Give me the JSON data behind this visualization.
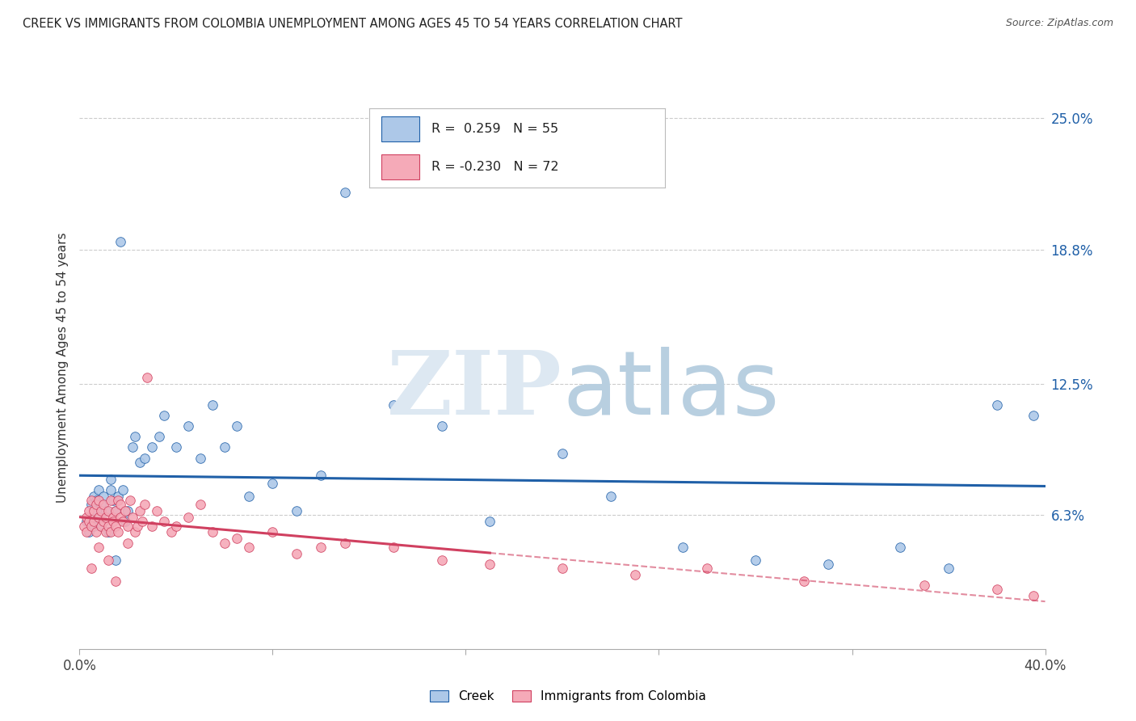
{
  "title": "CREEK VS IMMIGRANTS FROM COLOMBIA UNEMPLOYMENT AMONG AGES 45 TO 54 YEARS CORRELATION CHART",
  "source": "Source: ZipAtlas.com",
  "ylabel": "Unemployment Among Ages 45 to 54 years",
  "xlim": [
    0.0,
    0.4
  ],
  "ylim": [
    0.0,
    0.265
  ],
  "xticks": [
    0.0,
    0.08,
    0.16,
    0.24,
    0.32,
    0.4
  ],
  "xticklabels": [
    "0.0%",
    "",
    "",
    "",
    "",
    "40.0%"
  ],
  "ytick_labels_right": [
    "25.0%",
    "18.8%",
    "12.5%",
    "6.3%"
  ],
  "ytick_vals_right": [
    0.25,
    0.188,
    0.125,
    0.063
  ],
  "creek_R": 0.259,
  "creek_N": 55,
  "colombia_R": -0.23,
  "colombia_N": 72,
  "creek_color": "#adc8e8",
  "creek_line_color": "#2060a8",
  "colombia_color": "#f5aab8",
  "colombia_line_color": "#d04060",
  "legend_creek_label": "Creek",
  "legend_colombia_label": "Immigrants from Colombia",
  "creek_scatter_x": [
    0.003,
    0.004,
    0.005,
    0.006,
    0.006,
    0.007,
    0.007,
    0.008,
    0.008,
    0.009,
    0.009,
    0.01,
    0.01,
    0.011,
    0.012,
    0.013,
    0.013,
    0.014,
    0.015,
    0.016,
    0.017,
    0.018,
    0.019,
    0.02,
    0.022,
    0.023,
    0.025,
    0.027,
    0.03,
    0.033,
    0.035,
    0.04,
    0.045,
    0.05,
    0.055,
    0.06,
    0.065,
    0.07,
    0.08,
    0.09,
    0.1,
    0.11,
    0.13,
    0.15,
    0.17,
    0.2,
    0.22,
    0.25,
    0.28,
    0.31,
    0.34,
    0.36,
    0.38,
    0.395,
    0.015
  ],
  "creek_scatter_y": [
    0.06,
    0.055,
    0.068,
    0.072,
    0.058,
    0.065,
    0.07,
    0.062,
    0.075,
    0.058,
    0.068,
    0.072,
    0.06,
    0.065,
    0.055,
    0.075,
    0.08,
    0.07,
    0.065,
    0.072,
    0.192,
    0.075,
    0.06,
    0.065,
    0.095,
    0.1,
    0.088,
    0.09,
    0.095,
    0.1,
    0.11,
    0.095,
    0.105,
    0.09,
    0.115,
    0.095,
    0.105,
    0.072,
    0.078,
    0.065,
    0.082,
    0.215,
    0.115,
    0.105,
    0.06,
    0.092,
    0.072,
    0.048,
    0.042,
    0.04,
    0.048,
    0.038,
    0.115,
    0.11,
    0.042
  ],
  "colombia_scatter_x": [
    0.002,
    0.003,
    0.003,
    0.004,
    0.004,
    0.005,
    0.005,
    0.006,
    0.006,
    0.007,
    0.007,
    0.008,
    0.008,
    0.009,
    0.009,
    0.01,
    0.01,
    0.011,
    0.011,
    0.012,
    0.012,
    0.013,
    0.013,
    0.014,
    0.014,
    0.015,
    0.015,
    0.016,
    0.016,
    0.017,
    0.017,
    0.018,
    0.019,
    0.02,
    0.021,
    0.022,
    0.023,
    0.024,
    0.025,
    0.026,
    0.027,
    0.028,
    0.03,
    0.032,
    0.035,
    0.038,
    0.04,
    0.045,
    0.05,
    0.055,
    0.06,
    0.065,
    0.07,
    0.08,
    0.09,
    0.1,
    0.11,
    0.13,
    0.15,
    0.17,
    0.2,
    0.23,
    0.26,
    0.3,
    0.35,
    0.38,
    0.395,
    0.02,
    0.012,
    0.008,
    0.005,
    0.015
  ],
  "colombia_scatter_y": [
    0.058,
    0.062,
    0.055,
    0.065,
    0.06,
    0.07,
    0.058,
    0.065,
    0.06,
    0.068,
    0.055,
    0.062,
    0.07,
    0.058,
    0.065,
    0.06,
    0.068,
    0.055,
    0.062,
    0.065,
    0.058,
    0.07,
    0.055,
    0.062,
    0.06,
    0.065,
    0.058,
    0.07,
    0.055,
    0.062,
    0.068,
    0.06,
    0.065,
    0.058,
    0.07,
    0.062,
    0.055,
    0.058,
    0.065,
    0.06,
    0.068,
    0.128,
    0.058,
    0.065,
    0.06,
    0.055,
    0.058,
    0.062,
    0.068,
    0.055,
    0.05,
    0.052,
    0.048,
    0.055,
    0.045,
    0.048,
    0.05,
    0.048,
    0.042,
    0.04,
    0.038,
    0.035,
    0.038,
    0.032,
    0.03,
    0.028,
    0.025,
    0.05,
    0.042,
    0.048,
    0.038,
    0.032
  ],
  "bg_color": "#ffffff",
  "grid_color": "#cccccc"
}
